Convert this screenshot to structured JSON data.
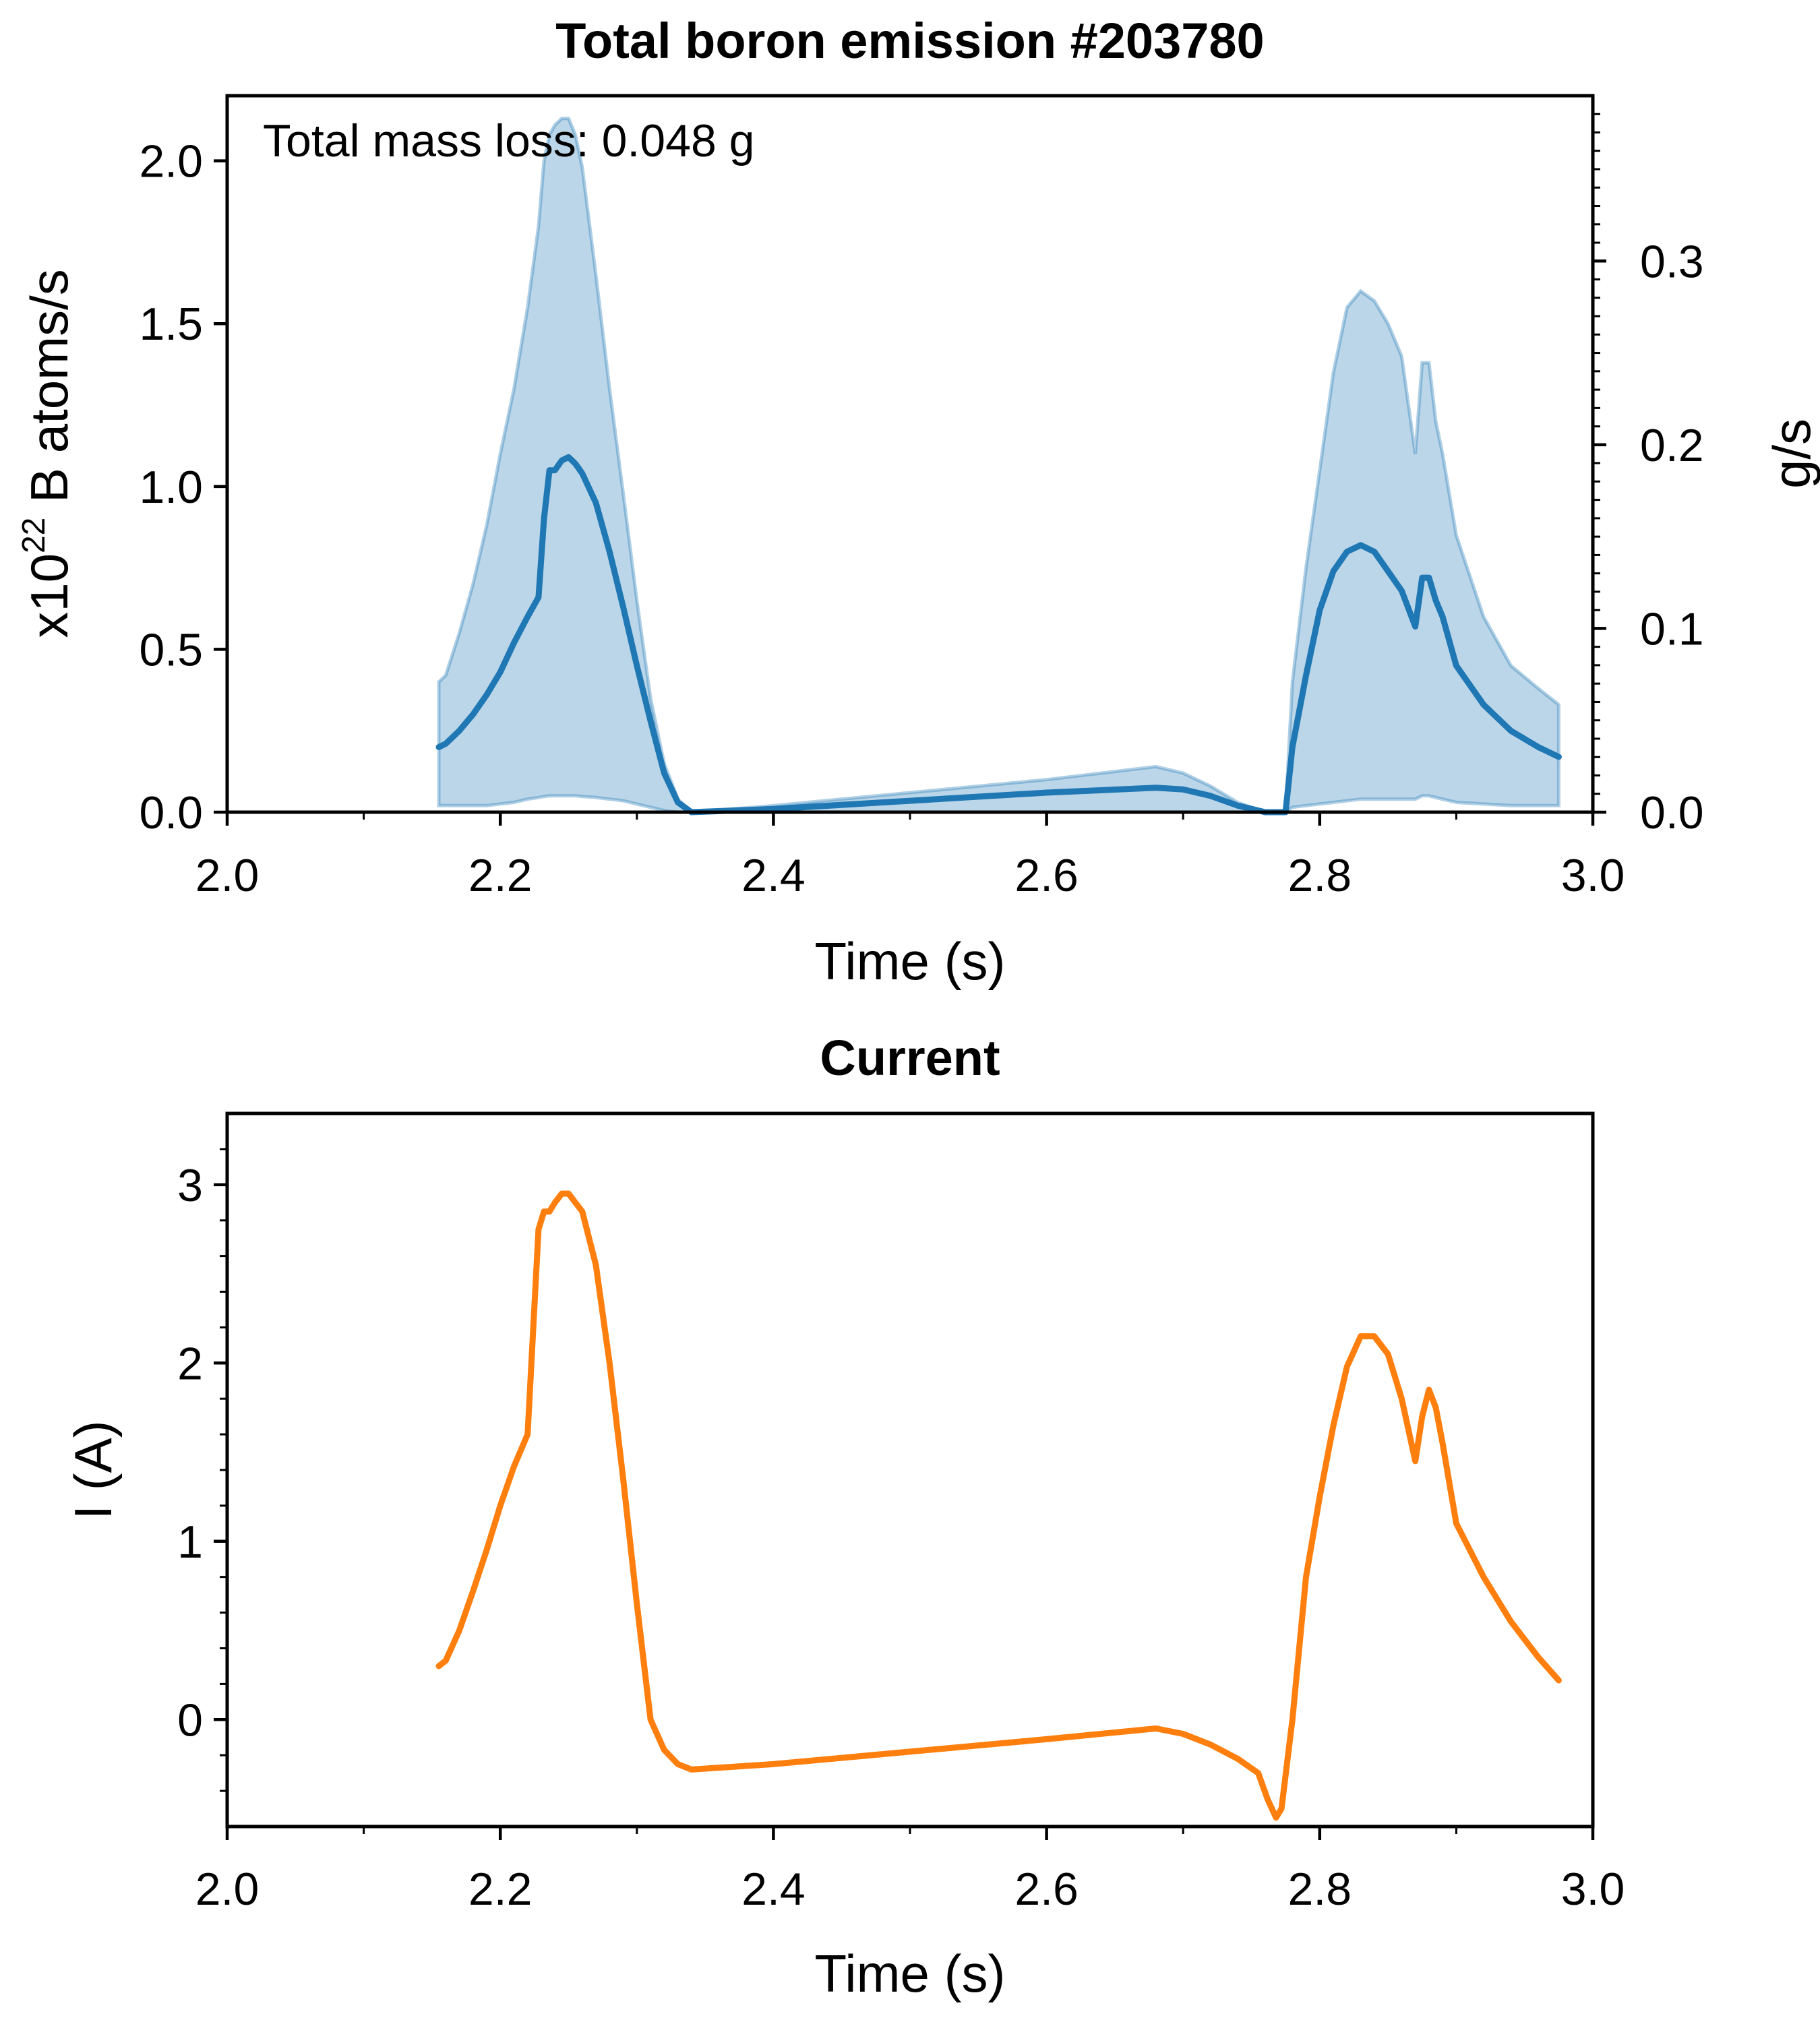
{
  "chart_data": [
    {
      "type": "line",
      "title": "Total boron emission #203780",
      "xlabel": "Time (s)",
      "ylabel_prefix": "x10",
      "ylabel_exponent": "22",
      "ylabel_suffix": " B atoms/s",
      "y2label": "g/s",
      "annotation": "Total mass loss: 0.048 g",
      "xlim": [
        2.0,
        3.0
      ],
      "ylim": [
        0,
        2.2
      ],
      "y2lim": [
        0,
        0.39
      ],
      "x_ticks": [
        "2.0",
        "2.2",
        "2.4",
        "2.6",
        "2.8",
        "3.0"
      ],
      "y_ticks": [
        "0.0",
        "0.5",
        "1.0",
        "1.5",
        "2.0"
      ],
      "y2_ticks": [
        "0.0",
        "0.1",
        "0.2",
        "0.3"
      ],
      "grid": false,
      "colors": {
        "line": "#1f77b4",
        "band": "#1f77b4"
      },
      "series": [
        {
          "x": [
            2.155,
            2.16,
            2.17,
            2.18,
            2.19,
            2.2,
            2.21,
            2.22,
            2.228,
            2.232,
            2.236,
            2.24,
            2.245,
            2.25,
            2.255,
            2.26,
            2.27,
            2.28,
            2.29,
            2.3,
            2.31,
            2.32,
            2.33,
            2.34,
            2.4,
            2.5,
            2.6,
            2.68,
            2.7,
            2.72,
            2.74,
            2.76,
            2.775,
            2.78,
            2.79,
            2.8,
            2.81,
            2.82,
            2.83,
            2.84,
            2.85,
            2.86,
            2.87,
            2.875,
            2.88,
            2.885,
            2.89,
            2.9,
            2.92,
            2.94,
            2.96,
            2.975
          ],
          "y": [
            0.2,
            0.21,
            0.25,
            0.3,
            0.36,
            0.43,
            0.52,
            0.6,
            0.66,
            0.9,
            1.05,
            1.05,
            1.08,
            1.09,
            1.07,
            1.04,
            0.95,
            0.8,
            0.63,
            0.45,
            0.28,
            0.12,
            0.03,
            0.0,
            0.01,
            0.035,
            0.06,
            0.075,
            0.07,
            0.05,
            0.02,
            0.0,
            0.0,
            0.2,
            0.42,
            0.62,
            0.74,
            0.8,
            0.82,
            0.8,
            0.74,
            0.68,
            0.57,
            0.72,
            0.72,
            0.65,
            0.6,
            0.45,
            0.33,
            0.25,
            0.2,
            0.17
          ],
          "y_low": [
            0.02,
            0.02,
            0.02,
            0.02,
            0.02,
            0.025,
            0.03,
            0.04,
            0.045,
            0.048,
            0.05,
            0.05,
            0.05,
            0.05,
            0.05,
            0.048,
            0.045,
            0.04,
            0.035,
            0.025,
            0.015,
            0.005,
            0.0,
            0.0,
            0.0,
            0.0,
            0.0,
            0.0,
            0.0,
            0.0,
            0.0,
            0.0,
            0.0,
            0.015,
            0.02,
            0.025,
            0.03,
            0.035,
            0.04,
            0.04,
            0.04,
            0.04,
            0.04,
            0.05,
            0.05,
            0.045,
            0.04,
            0.03,
            0.025,
            0.02,
            0.02,
            0.02
          ],
          "y_high": [
            0.4,
            0.42,
            0.55,
            0.7,
            0.88,
            1.1,
            1.3,
            1.55,
            1.8,
            2.0,
            2.08,
            2.11,
            2.13,
            2.13,
            2.08,
            1.98,
            1.65,
            1.3,
            0.98,
            0.65,
            0.35,
            0.15,
            0.04,
            0.0,
            0.02,
            0.06,
            0.1,
            0.14,
            0.12,
            0.08,
            0.03,
            0.0,
            0.0,
            0.4,
            0.75,
            1.05,
            1.35,
            1.55,
            1.6,
            1.57,
            1.5,
            1.4,
            1.1,
            1.38,
            1.38,
            1.2,
            1.1,
            0.85,
            0.6,
            0.45,
            0.38,
            0.33
          ]
        }
      ]
    },
    {
      "type": "line",
      "title": "Current",
      "xlabel": "Time (s)",
      "ylabel": "I (A)",
      "xlim": [
        2.0,
        3.0
      ],
      "ylim": [
        -0.6,
        3.4
      ],
      "x_ticks": [
        "2.0",
        "2.2",
        "2.4",
        "2.6",
        "2.8",
        "3.0"
      ],
      "y_ticks": [
        "0",
        "1",
        "2",
        "3"
      ],
      "grid": false,
      "colors": {
        "line": "#ff7f0e"
      },
      "series": [
        {
          "x": [
            2.155,
            2.16,
            2.17,
            2.18,
            2.19,
            2.2,
            2.21,
            2.22,
            2.228,
            2.232,
            2.236,
            2.24,
            2.245,
            2.25,
            2.255,
            2.26,
            2.27,
            2.28,
            2.29,
            2.3,
            2.31,
            2.32,
            2.33,
            2.34,
            2.4,
            2.5,
            2.6,
            2.68,
            2.7,
            2.72,
            2.74,
            2.755,
            2.762,
            2.768,
            2.772,
            2.78,
            2.79,
            2.8,
            2.81,
            2.82,
            2.83,
            2.84,
            2.85,
            2.86,
            2.87,
            2.875,
            2.88,
            2.885,
            2.89,
            2.9,
            2.92,
            2.94,
            2.96,
            2.975
          ],
          "y": [
            0.3,
            0.33,
            0.5,
            0.72,
            0.95,
            1.2,
            1.42,
            1.6,
            2.75,
            2.85,
            2.85,
            2.9,
            2.95,
            2.95,
            2.9,
            2.85,
            2.55,
            2.0,
            1.35,
            0.65,
            0.0,
            -0.17,
            -0.25,
            -0.28,
            -0.25,
            -0.18,
            -0.11,
            -0.05,
            -0.08,
            -0.14,
            -0.22,
            -0.3,
            -0.45,
            -0.55,
            -0.5,
            0.0,
            0.8,
            1.25,
            1.65,
            1.98,
            2.15,
            2.15,
            2.05,
            1.8,
            1.45,
            1.7,
            1.85,
            1.75,
            1.55,
            1.1,
            0.8,
            0.55,
            0.35,
            0.22
          ]
        }
      ]
    }
  ]
}
